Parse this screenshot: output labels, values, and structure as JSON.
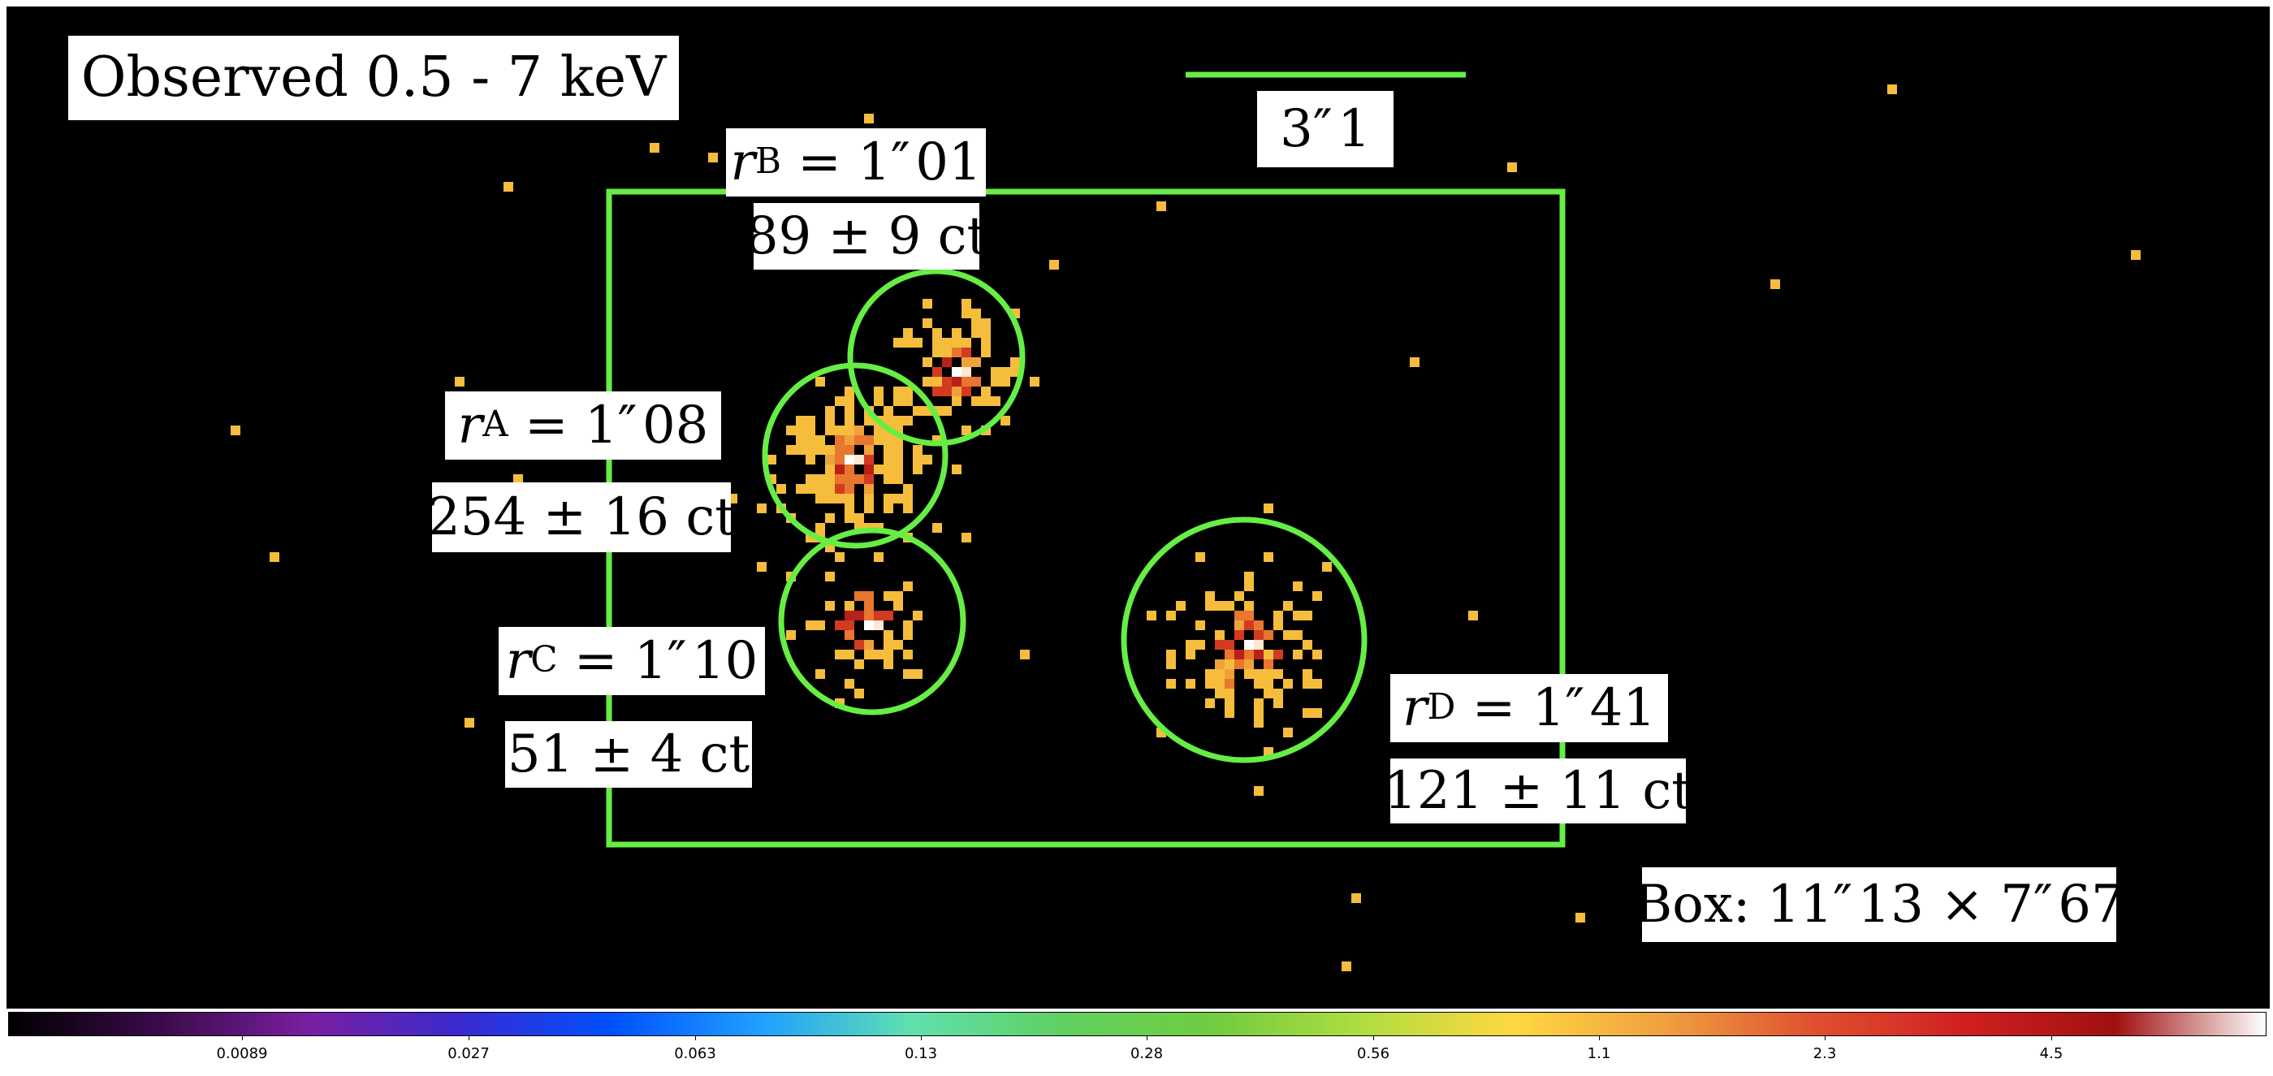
{
  "image": {
    "title": "Observed 0.5 - 7 keV",
    "scale_bar_label": "3″ 1",
    "box_label": "Box: 11″ 13 × 7″ 67",
    "regions": [
      {
        "id": "A",
        "radius_label": "1″ 08",
        "counts": "254 ± 16 ct"
      },
      {
        "id": "B",
        "radius_label": "1″ 01",
        "counts": "89 ± 9 ct"
      },
      {
        "id": "C",
        "radius_label": "1″ 10",
        "counts": "51 ± 4 ct"
      },
      {
        "id": "D",
        "radius_label": "1″ 41",
        "counts": "121 ± 11 ct"
      }
    ],
    "region_color": "#66ee44",
    "background_color": "#000000"
  },
  "colorbar": {
    "tick_labels": [
      "0.0089",
      "0.027",
      "0.063",
      "0.13",
      "0.28",
      "0.56",
      "1.1",
      "2.3",
      "4.5"
    ],
    "colors": [
      "#000000",
      "#3a0a4a",
      "#7a1fa0",
      "#3a2ad0",
      "#0050ff",
      "#20a0ff",
      "#60e0b0",
      "#60d060",
      "#70cc40",
      "#b0dd40",
      "#ffd840",
      "#f0a040",
      "#e05030",
      "#d02020",
      "#a01010",
      "#ffffff"
    ]
  }
}
